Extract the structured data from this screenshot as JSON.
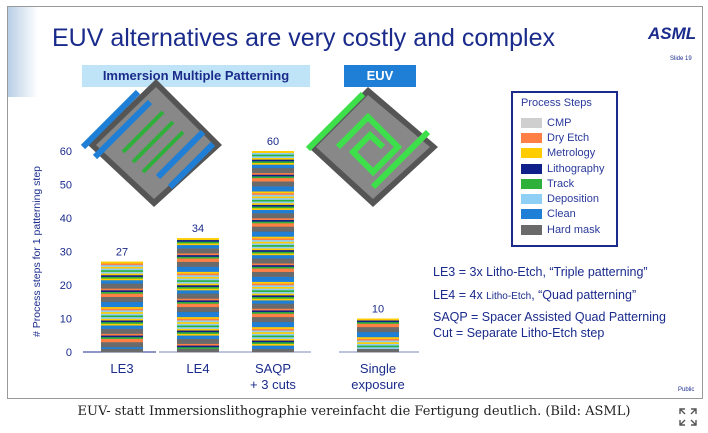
{
  "slide": {
    "title": "EUV alternatives are very costly and complex",
    "logo": "ASML",
    "slide_number": "Slide 19",
    "classification": "Public",
    "header_left": "Immersion Multiple Patterning",
    "header_right": "EUV"
  },
  "legend": {
    "title": "Process Steps",
    "items": [
      {
        "label": "CMP",
        "color": "#cfcfcf"
      },
      {
        "label": "Dry Etch",
        "color": "#ff7f45"
      },
      {
        "label": "Metrology",
        "color": "#ffcc00"
      },
      {
        "label": "Lithography",
        "color": "#10208a"
      },
      {
        "label": "Track",
        "color": "#2fb03a"
      },
      {
        "label": "Deposition",
        "color": "#8dcff5"
      },
      {
        "label": "Clean",
        "color": "#1f7fd6"
      },
      {
        "label": "Hard mask",
        "color": "#6a6a6a"
      }
    ]
  },
  "notes": {
    "le3": "LE3 = 3x Litho-Etch, “Triple patterning”",
    "le4_a": "LE4 = 4x ",
    "le4_b": "Litho-Etch",
    "le4_c": ", “Quad patterning”",
    "saqp": "SAQP = Spacer Assisted Quad Patterning",
    "cut": "Cut = Separate Litho-Etch step"
  },
  "caption": "EUV- statt Immersionslithographie vereinfacht die Fertigung deutlich. (Bild: ASML)",
  "chart_data": {
    "type": "bar",
    "stacked": true,
    "categories": [
      "LE3",
      "LE4",
      "SAQP\n+ 3 cuts",
      "Single\nexposure"
    ],
    "values": [
      27,
      34,
      60,
      10
    ],
    "ylabel": "# Process steps  for 1 patterning step",
    "ylim": [
      0,
      60
    ],
    "yticks": [
      0,
      10,
      20,
      30,
      40,
      50,
      60
    ],
    "groups": [
      "Immersion Multiple Patterning",
      "Immersion Multiple Patterning",
      "Immersion Multiple Patterning",
      "EUV"
    ]
  }
}
